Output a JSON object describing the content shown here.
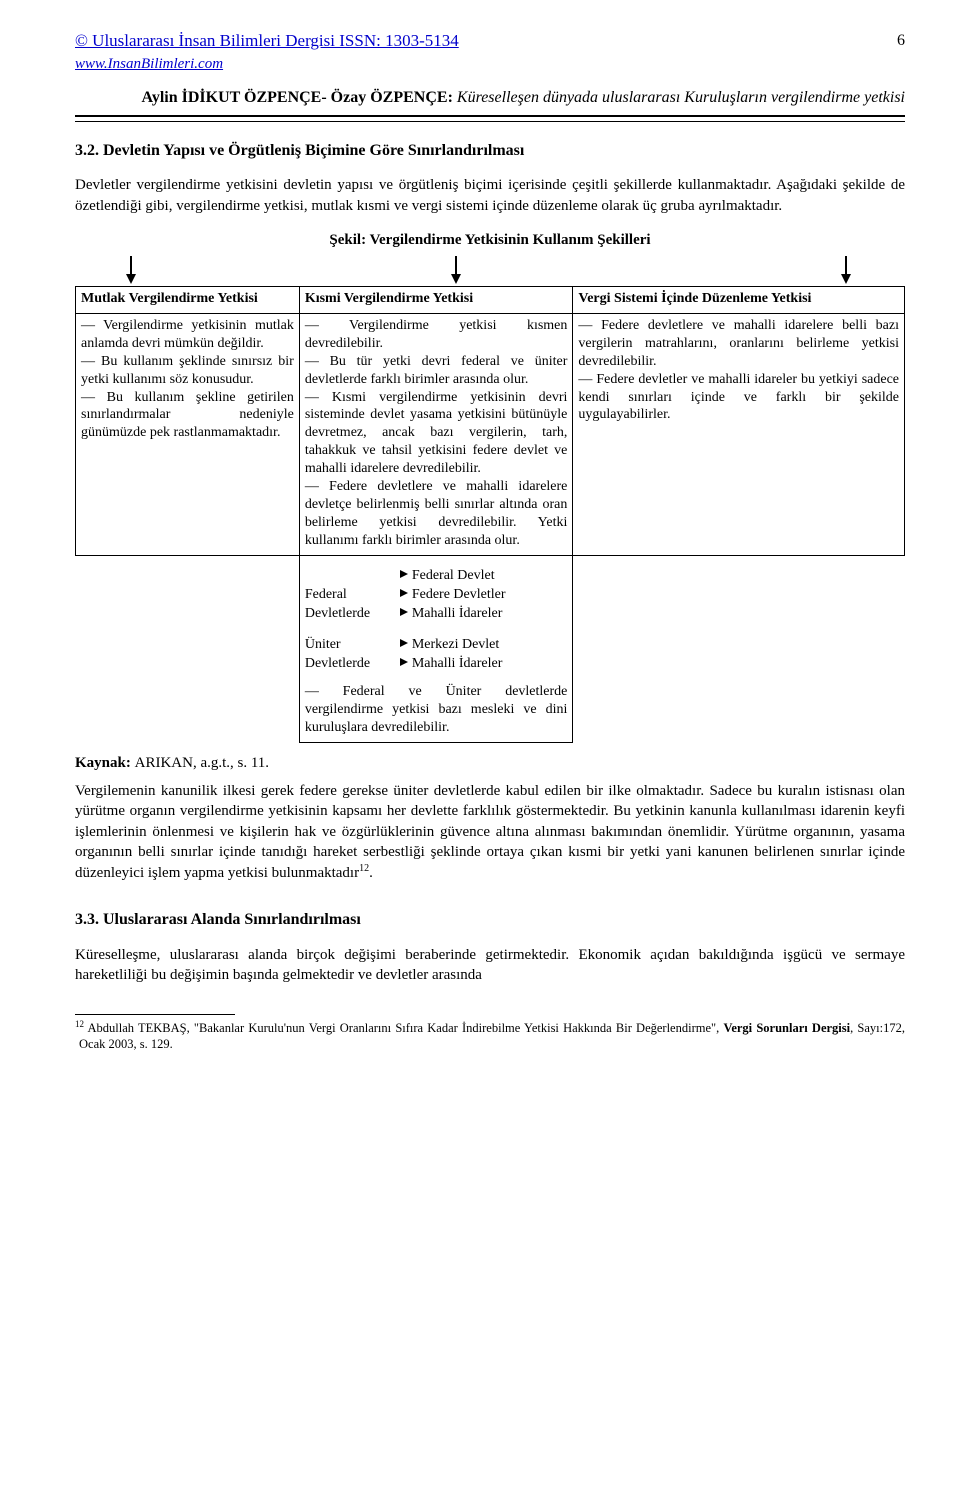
{
  "header": {
    "journal": "© Uluslararası İnsan Bilimleri Dergisi ISSN: 1303-5134",
    "url": "www.InsanBilimleri.com",
    "page_number": "6",
    "authors": "Aylin İDİKUT ÖZPENÇE- Özay ÖZPENÇE: ",
    "paper_title": "Küreselleşen dünyada uluslararası Kuruluşların vergilendirme yetkisi"
  },
  "section1": {
    "heading": "3.2. Devletin Yapısı ve Örgütleniş Biçimine Göre Sınırlandırılması",
    "para": "Devletler vergilendirme yetkisini devletin yapısı ve örgütleniş biçimi içerisinde çeşitli şekillerde kullanmaktadır. Aşağıdaki şekilde de özetlendiği gibi, vergilendirme yetkisi, mutlak kısmi ve vergi sistemi içinde düzenleme olarak üç gruba ayrılmaktadır."
  },
  "figure": {
    "caption": "Şekil: Vergilendirme Yetkisinin Kullanım Şekilleri",
    "headers": [
      "Mutlak Vergilendirme Yetkisi",
      "Kısmi Vergilendirme Yetkisi",
      "Vergi Sistemi İçinde Düzenleme Yetkisi"
    ],
    "cells": {
      "c0": "— Vergilendirme yetkisinin mutlak anlamda devri mümkün değildir.\n— Bu kullanım şeklinde sınırsız bir yetki kullanımı söz konusudur.\n— Bu kullanım şekline getirilen sınırlandırmalar nedeniyle günümüzde pek rastlanmamaktadır.",
      "c1": "— Vergilendirme yetkisi kısmen devredilebilir.\n— Bu tür yetki devri federal ve üniter devletlerde farklı birimler arasında olur.\n— Kısmi vergilendirme yetkisinin devri sisteminde devlet yasama yetkisini bütünüyle devretmez, ancak bazı vergilerin, tarh, tahakkuk ve tahsil yetkisini federe devlet ve mahalli idarelere devredilebilir.\n— Federe devletlere ve mahalli idarelere devletçe belirlenmiş belli sınırlar altında oran belirleme yetkisi devredilebilir. Yetki kullanımı farklı birimler arasında olur.",
      "c2": "— Federe devletlere ve mahalli idarelere belli bazı vergilerin matrahlarını, oranlarını belirleme yetkisi devredilebilir.\n— Federe devletler ve mahalli idareler bu yetkiyi sadece kendi sınırları içinde ve farklı bir şekilde uygulayabilirler."
    },
    "sub": {
      "federal_label": "Federal Devletlerde",
      "federal_items": [
        "Federal Devlet",
        "Federe Devletler",
        "Mahalli İdareler"
      ],
      "uniter_label": "Üniter Devletlerde",
      "uniter_items": [
        "Merkezi Devlet",
        "Mahalli İdareler"
      ],
      "note": "— Federal ve Üniter devletlerde vergilendirme yetkisi bazı mesleki ve dini kuruluşlara devredilebilir."
    }
  },
  "source": {
    "label": "Kaynak: ",
    "text": "ARIKAN, a.g.t., s. 11."
  },
  "para_after": "Vergilemenin kanunilik ilkesi gerek federe gerekse üniter devletlerde kabul edilen bir ilke olmaktadır. Sadece bu kuralın istisnası olan yürütme organın vergilendirme yetkisinin kapsamı her devlette farklılık göstermektedir. Bu yetkinin kanunla kullanılması idarenin keyfi işlemlerinin önlenmesi ve kişilerin hak ve özgürlüklerinin güvence altına alınması bakımından önemlidir. Yürütme organının, yasama organının belli sınırlar içinde tanıdığı hareket serbestliği şeklinde ortaya çıkan kısmi bir yetki yani kanunen belirlenen sınırlar içinde düzenleyici işlem yapma yetkisi bulunmaktadır",
  "ref12": "12",
  "section2": {
    "heading": "3.3. Uluslararası Alanda Sınırlandırılması",
    "para": "Küreselleşme, uluslararası alanda birçok değişimi beraberinde getirmektedir. Ekonomik açıdan bakıldığında işgücü ve sermaye hareketliliği bu değişimin başında gelmektedir ve devletler arasında"
  },
  "footnote": {
    "num": "12",
    "text_a": " Abdullah TEKBAŞ, \"Bakanlar Kurulu'nun Vergi Oranlarını Sıfıra Kadar İndirebilme Yetkisi Hakkında Bir Değerlendirme\", ",
    "journal": "Vergi Sorunları Dergisi",
    "text_b": ", Sayı:172, Ocak 2003, s. 129."
  }
}
